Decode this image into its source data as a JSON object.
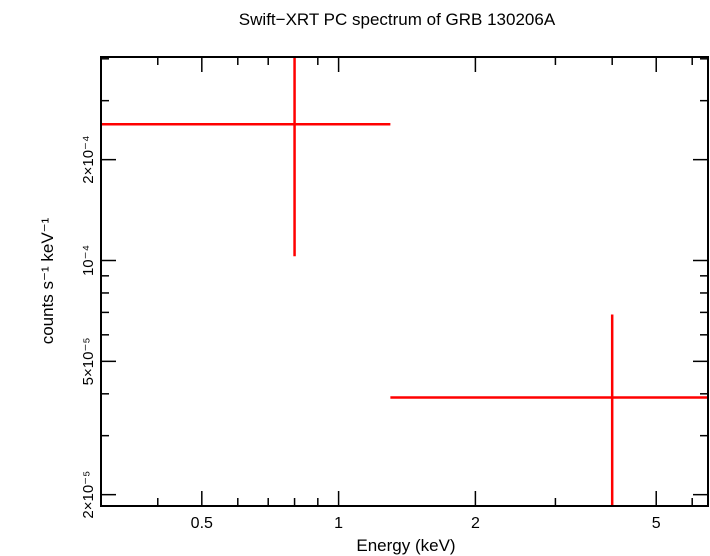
{
  "chart_data": {
    "type": "scatter",
    "title": "Swift−XRT PC spectrum of GRB 130206A",
    "xlabel": "Energy (keV)",
    "ylabel": "counts s⁻¹ keV⁻¹",
    "xscale": "log",
    "yscale": "log",
    "xlim": [
      0.3,
      6.5
    ],
    "ylim": [
      1.85e-05,
      0.000405
    ],
    "x_ticks": [
      {
        "value": 0.5,
        "label": "0.5"
      },
      {
        "value": 1,
        "label": "1"
      },
      {
        "value": 2,
        "label": "2"
      },
      {
        "value": 5,
        "label": "5"
      }
    ],
    "y_ticks": [
      {
        "value": 2e-05,
        "label": "2×10⁻⁵"
      },
      {
        "value": 5e-05,
        "label": "5×10⁻⁵"
      },
      {
        "value": 0.0001,
        "label": "10⁻⁴"
      },
      {
        "value": 0.0002,
        "label": "2×10⁻⁴"
      }
    ],
    "color": "#ff0000",
    "points": [
      {
        "x": 0.8,
        "x_low": 0.3,
        "x_high": 1.3,
        "y": 0.000255,
        "y_low": 0.000103,
        "y_high": 0.000405
      },
      {
        "x": 4.0,
        "x_low": 1.3,
        "x_high": 6.5,
        "y": 3.9e-05,
        "y_low": 1.85e-05,
        "y_high": 6.9e-05
      }
    ]
  }
}
